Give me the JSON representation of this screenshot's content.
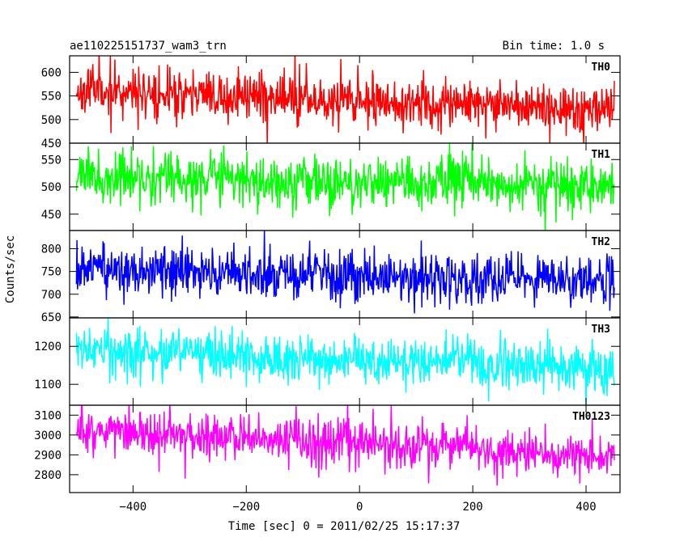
{
  "header": {
    "title_left": "ae110225151737_wam3_trn",
    "title_right": "Bin time: 1.0 s"
  },
  "chart_data": {
    "type": "line",
    "title": "ae110225151737_wam3_trn",
    "subtitle": "Bin time: 1.0 s",
    "xlabel": "Time [sec] 0 = 2011/02/25 15:17:37",
    "ylabel": "Counts/sec",
    "xlim": [
      -512,
      460
    ],
    "x_ticks": [
      -400,
      -200,
      0,
      200,
      400
    ],
    "x_tick_labels": [
      "−400",
      "−200",
      "0",
      "200",
      "400"
    ],
    "x_start": -500,
    "x_end": 450,
    "x_step": 1,
    "grid": false,
    "series": [
      {
        "name": "TH0",
        "color": "#ff0000",
        "ylim": [
          450,
          635
        ],
        "y_ticks": [
          450,
          500,
          550,
          600
        ],
        "mean_start": 562,
        "mean_end": 520,
        "noise_sigma": 25,
        "seed": 11
      },
      {
        "name": "TH1",
        "color": "#00ff00",
        "ylim": [
          420,
          580
        ],
        "y_ticks": [
          450,
          500,
          550
        ],
        "mean_start": 518,
        "mean_end": 502,
        "noise_sigma": 23,
        "seed": 23
      },
      {
        "name": "TH2",
        "color": "#0000ff",
        "ylim": [
          648,
          840
        ],
        "y_ticks": [
          650,
          700,
          750,
          800
        ],
        "mean_start": 752,
        "mean_end": 728,
        "noise_sigma": 27,
        "seed": 37
      },
      {
        "name": "TH3",
        "color": "#00ffff",
        "ylim": [
          1045,
          1275
        ],
        "y_ticks": [
          1100,
          1200
        ],
        "mean_start": 1190,
        "mean_end": 1140,
        "noise_sigma": 32,
        "seed": 53
      },
      {
        "name": "TH0123",
        "color": "#ff00ff",
        "ylim": [
          2710,
          3150
        ],
        "y_ticks": [
          2800,
          2900,
          3000,
          3100
        ],
        "mean_start": 3030,
        "mean_end": 2890,
        "noise_sigma": 55,
        "seed": 71
      }
    ]
  }
}
